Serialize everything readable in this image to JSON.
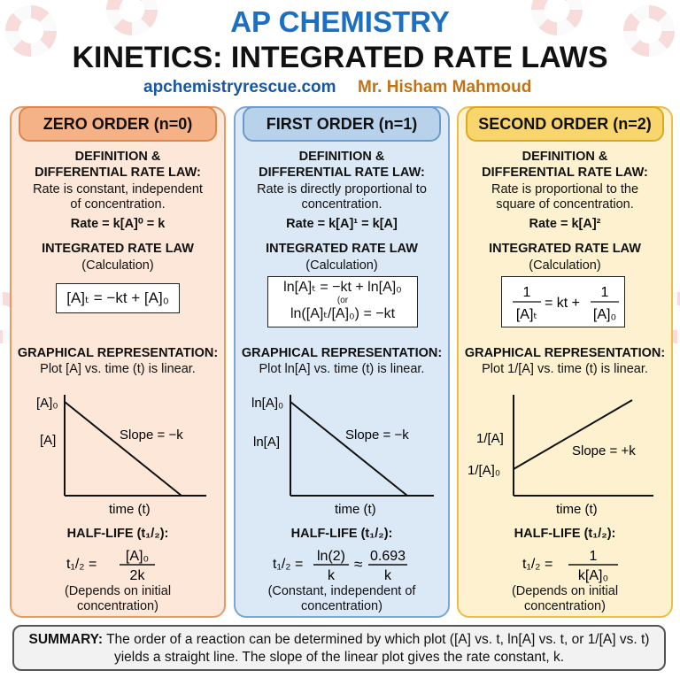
{
  "header": {
    "title": "AP CHEMISTRY",
    "subtitle": "KINETICS: INTEGRATED RATE LAWS",
    "site": "apchemistryrescue.com",
    "author": "Mr. Hisham Mahmoud"
  },
  "colors": {
    "blue_title": "#1d6fc1",
    "zero": "#fde7d8",
    "first": "#dbe8f5",
    "second": "#fdf1cf"
  },
  "columns": [
    {
      "title": "ZERO ORDER (n=0)",
      "def_heading": "DEFINITION & DIFFERENTIAL RATE LAW:",
      "def_text": "Rate is constant, independent of concentration.",
      "rate_law": "Rate = k[A]⁰ = k",
      "int_heading": "INTEGRATED RATE LAW",
      "int_sub": "(Calculation)",
      "formula_lines": [
        "[A]ₜ = −kt + [A]₀"
      ],
      "graph_heading": "GRAPHICAL REPRESENTATION:",
      "graph_desc": "Plot [A] vs. time (t) is linear.",
      "y_top_label": "[A]₀",
      "y_label": "[A]",
      "slope_label": "Slope = −k",
      "x_label": "time (t)",
      "half_heading": "HALF-LIFE (t₁/₂):",
      "half_lhs": "t₁/₂ =",
      "half_num": "[A]₀",
      "half_den": "2k",
      "half_note": "(Depends on initial concentration)"
    },
    {
      "title": "FIRST ORDER (n=1)",
      "def_heading": "DEFINITION & DIFFERENTIAL RATE LAW:",
      "def_text": "Rate is directly proportional to concentration.",
      "rate_law": "Rate = k[A]¹ = k[A]",
      "int_heading": "INTEGRATED RATE LAW",
      "int_sub": "(Calculation)",
      "formula_lines": [
        "ln[A]ₜ = −kt + ln[A]₀",
        "(or",
        "ln([A]ₜ/[A]₀) = −kt"
      ],
      "graph_heading": "GRAPHICAL REPRESENTATION:",
      "graph_desc": "Plot ln[A] vs. time (t) is linear.",
      "y_top_label": "ln[A]₀",
      "y_label": "ln[A]",
      "slope_label": "Slope = −k",
      "x_label": "time (t)",
      "half_heading": "HALF-LIFE (t₁/₂):",
      "half_lhs": "t₁/₂ =",
      "half_num": "ln(2)",
      "half_den": "k",
      "half_approx": "≈",
      "half_num2": "0.693",
      "half_den2": "k",
      "half_note": "(Constant, independent of concentration)"
    },
    {
      "title": "SECOND ORDER (n=2)",
      "def_heading": "DEFINITION & DIFFERENTIAL RATE LAW:",
      "def_text": "Rate is proportional to the square of concentration.",
      "rate_law": "Rate = k[A]²",
      "int_heading": "INTEGRATED RATE LAW",
      "int_sub": "(Calculation)",
      "formula_num": "1",
      "formula_den": "[A]ₜ",
      "formula_mid": "= kt +",
      "formula_num2": "1",
      "formula_den2": "[A]₀",
      "graph_heading": "GRAPHICAL REPRESENTATION:",
      "graph_desc": "Plot 1/[A] vs. time (t) is linear.",
      "y_label": "1/[A]",
      "y_bottom_label": "1/[A]₀",
      "slope_label": "Slope = +k",
      "x_label": "time (t)",
      "half_heading": "HALF-LIFE (t₁/₂):",
      "half_lhs": "t₁/₂ =",
      "half_num": "1",
      "half_den": "k[A]₀",
      "half_note": "(Depends on initial concentration)"
    }
  ],
  "summary": {
    "label": "SUMMARY:",
    "text": "The order of a reaction can be determined by which plot ([A] vs. t, ln[A] vs. t, or 1/[A] vs. t) yields a straight line. The slope of the linear plot gives the rate constant, k."
  }
}
